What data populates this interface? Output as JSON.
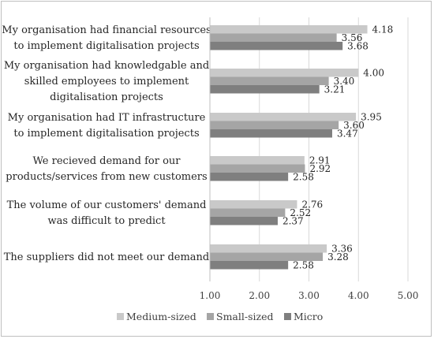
{
  "chart_data": {
    "type": "bar",
    "orientation": "horizontal",
    "categories": [
      [
        "My organisation had financial resources",
        "to implement digitalisation projects"
      ],
      [
        "My organisation had knowledgable and",
        "skilled employees to implement",
        "digitalisation projects"
      ],
      [
        "My organisation had IT infrastructure",
        "to implement digitalisation projects"
      ],
      [
        "We recieved demand for our",
        "products/services from new customers"
      ],
      [
        "The volume of our customers' demand",
        "was difficult to predict"
      ],
      [
        "The suppliers did not meet our demand"
      ]
    ],
    "series": [
      {
        "name": "Medium-sized",
        "color": "#c9c9c9",
        "values": [
          4.18,
          4.0,
          3.95,
          2.91,
          2.76,
          3.36
        ]
      },
      {
        "name": "Small-sized",
        "color": "#a5a5a5",
        "values": [
          3.56,
          3.4,
          3.6,
          2.92,
          2.52,
          3.28
        ]
      },
      {
        "name": "Micro",
        "color": "#7f7f7f",
        "values": [
          3.68,
          3.21,
          3.47,
          2.58,
          2.37,
          2.58
        ]
      }
    ],
    "xlim": [
      1.0,
      5.0
    ],
    "xticks": [
      "1.00",
      "2.00",
      "3.00",
      "4.00",
      "5.00"
    ],
    "grid": true,
    "legend_position": "bottom"
  }
}
